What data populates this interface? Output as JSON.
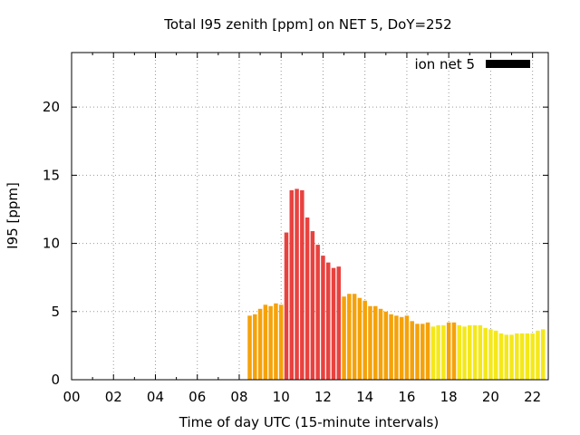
{
  "chart_data": {
    "type": "bar",
    "title": "Total I95 zenith [ppm] on NET 5, DoY=252",
    "xlabel": "Time of day UTC (15-minute intervals)",
    "ylabel": "I95 [ppm]",
    "xlim": [
      0,
      22.75
    ],
    "ylim": [
      0,
      24
    ],
    "x_ticks": [
      "00",
      "02",
      "04",
      "06",
      "08",
      "10",
      "12",
      "14",
      "16",
      "18",
      "20",
      "22"
    ],
    "y_ticks": [
      "0",
      "5",
      "10",
      "15",
      "20"
    ],
    "grid": true,
    "legend": {
      "label": "ion net 5",
      "color": "#000000",
      "placement": "top-right"
    },
    "interval_hours": 0.25,
    "start_hour": 8.5,
    "values": [
      4.7,
      4.8,
      5.2,
      5.5,
      5.4,
      5.6,
      5.5,
      10.8,
      13.9,
      14.0,
      13.9,
      11.9,
      10.9,
      9.9,
      9.1,
      8.6,
      8.2,
      8.3,
      6.1,
      6.3,
      6.3,
      6.0,
      5.8,
      5.4,
      5.4,
      5.2,
      5.0,
      4.8,
      4.7,
      4.6,
      4.7,
      4.3,
      4.1,
      4.1,
      4.2,
      3.9,
      4.0,
      4.0,
      4.2,
      4.2,
      4.0,
      3.9,
      4.0,
      4.0,
      4.0,
      3.8,
      3.7,
      3.6,
      3.4,
      3.3,
      3.3,
      3.4,
      3.4,
      3.4,
      3.4,
      3.6,
      3.7
    ],
    "colors": [
      "#f5a20a",
      "#f5a20a",
      "#f5a20a",
      "#f5a20a",
      "#f5a20a",
      "#f5a20a",
      "#f5a20a",
      "#e8423f",
      "#e8423f",
      "#e8423f",
      "#e8423f",
      "#e8423f",
      "#e8423f",
      "#e8423f",
      "#e8423f",
      "#e8423f",
      "#e8423f",
      "#e8423f",
      "#f5a20a",
      "#f5a20a",
      "#f5a20a",
      "#f5a20a",
      "#f5a20a",
      "#f5a20a",
      "#f5a20a",
      "#f5a20a",
      "#f5a20a",
      "#f5a20a",
      "#f5a20a",
      "#f5a20a",
      "#f5a20a",
      "#f5a20a",
      "#f5a20a",
      "#f5a20a",
      "#f5a20a",
      "#f5e81a",
      "#f5e81a",
      "#f5e81a",
      "#f5a20a",
      "#f5a20a",
      "#f5e81a",
      "#f5e81a",
      "#f5e81a",
      "#f5e81a",
      "#f5e81a",
      "#f5e81a",
      "#f5e81a",
      "#f5e81a",
      "#f5e81a",
      "#f5e81a",
      "#f5e81a",
      "#f5e81a",
      "#f5e81a",
      "#f5e81a",
      "#f5e81a",
      "#f5e81a",
      "#f5e81a"
    ]
  }
}
